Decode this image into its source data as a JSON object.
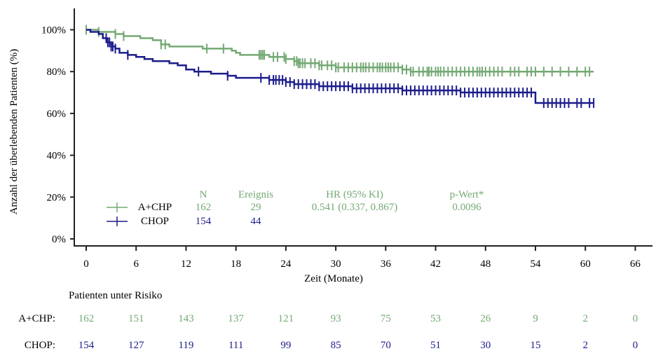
{
  "chart_data": {
    "type": "line",
    "subtype": "kaplan-meier",
    "title": "",
    "xlabel": "Zeit (Monate)",
    "ylabel": "Anzahl der überlebenden Patienten (%)",
    "xlim": [
      0,
      66
    ],
    "ylim": [
      0,
      100
    ],
    "x_ticks": [
      0,
      6,
      12,
      18,
      24,
      30,
      36,
      42,
      48,
      54,
      60,
      66
    ],
    "x_tick_labels": [
      "0",
      "6",
      "12",
      "18",
      "24",
      "30",
      "36",
      "42",
      "48",
      "54",
      "60",
      "66"
    ],
    "y_ticks": [
      0,
      20,
      40,
      60,
      80,
      100
    ],
    "y_tick_labels": [
      "0%",
      "20%",
      "40%",
      "60%",
      "80%",
      "100%"
    ],
    "grid": false,
    "legend_placement": "bottom-left",
    "colors": {
      "a_chp": "#74a974",
      "chop": "#1c1c8c",
      "axis": "#222222"
    },
    "series": [
      {
        "name": "A+CHP",
        "color": "#74a974",
        "steps": [
          [
            0,
            100
          ],
          [
            1.5,
            99
          ],
          [
            3.5,
            98
          ],
          [
            4.5,
            97
          ],
          [
            6.5,
            96
          ],
          [
            8,
            95
          ],
          [
            9,
            93
          ],
          [
            10,
            92
          ],
          [
            12,
            92
          ],
          [
            14,
            91
          ],
          [
            17,
            91
          ],
          [
            17.5,
            90
          ],
          [
            18,
            89
          ],
          [
            18.5,
            88
          ],
          [
            20,
            88
          ],
          [
            22,
            87
          ],
          [
            24,
            86
          ],
          [
            25,
            85
          ],
          [
            25.5,
            84
          ],
          [
            26,
            84
          ],
          [
            28,
            83
          ],
          [
            29,
            83
          ],
          [
            30,
            82
          ],
          [
            31,
            82
          ],
          [
            33,
            82
          ],
          [
            38,
            81
          ],
          [
            39,
            80
          ],
          [
            61,
            80
          ]
        ],
        "censored": [
          0,
          1.5,
          3.5,
          4.5,
          9,
          9.5,
          14.5,
          16.5,
          20.8,
          21,
          21.2,
          21.4,
          22.5,
          23,
          23.8,
          24,
          25,
          25.3,
          25.5,
          25.7,
          26,
          26.3,
          27,
          27.5,
          28,
          28.3,
          29,
          29.5,
          30,
          30.3,
          31,
          31.5,
          32,
          32.5,
          33,
          33.3,
          33.6,
          34,
          34.5,
          35,
          35.3,
          35.6,
          36,
          36.3,
          36.6,
          37,
          37.5,
          38,
          38.5,
          39,
          39.3,
          40,
          40.5,
          41,
          41.2,
          41.5,
          42,
          42.3,
          42.6,
          43,
          43.5,
          44,
          44.5,
          45,
          45.5,
          46,
          46.5,
          47,
          47.3,
          47.6,
          48,
          48.5,
          49,
          49.5,
          50,
          51,
          51.5,
          52,
          53,
          53.5,
          54,
          55,
          56,
          57,
          58,
          59,
          60,
          60.5
        ]
      },
      {
        "name": "CHOP",
        "color": "#1c1c8c",
        "steps": [
          [
            0,
            100
          ],
          [
            0.5,
            99
          ],
          [
            1.5,
            98
          ],
          [
            2,
            96
          ],
          [
            2.5,
            94
          ],
          [
            3,
            92
          ],
          [
            3.5,
            91
          ],
          [
            4,
            89
          ],
          [
            5,
            88
          ],
          [
            6,
            87
          ],
          [
            7,
            86
          ],
          [
            8,
            85
          ],
          [
            9,
            85
          ],
          [
            10,
            84
          ],
          [
            11,
            83
          ],
          [
            12,
            81
          ],
          [
            13,
            80
          ],
          [
            15,
            79
          ],
          [
            17,
            78
          ],
          [
            18,
            77
          ],
          [
            20,
            77
          ],
          [
            22,
            76
          ],
          [
            24,
            75
          ],
          [
            25,
            74
          ],
          [
            27,
            74
          ],
          [
            28,
            73
          ],
          [
            30,
            73
          ],
          [
            32,
            72
          ],
          [
            35,
            72
          ],
          [
            38,
            71
          ],
          [
            44,
            71
          ],
          [
            45,
            70
          ],
          [
            54,
            70
          ],
          [
            54,
            65
          ],
          [
            61,
            65
          ]
        ],
        "censored": [
          2.4,
          2.6,
          2.8,
          3,
          3.2,
          3.5,
          5,
          13.5,
          17,
          21,
          22,
          22.5,
          22.8,
          23.2,
          23.6,
          24,
          24.5,
          25,
          25.5,
          26,
          26.5,
          27,
          27.5,
          28,
          28.5,
          29,
          29.5,
          30,
          30.5,
          31,
          31.5,
          32,
          32.5,
          33,
          33.5,
          34,
          34.5,
          35,
          35.5,
          36,
          36.5,
          37,
          37.5,
          38,
          38.5,
          39,
          39.5,
          40,
          40.5,
          41,
          41.5,
          42,
          42.5,
          43,
          43.5,
          44,
          44.5,
          45,
          45.5,
          46,
          46.5,
          47,
          47.5,
          48,
          48.5,
          49,
          49.5,
          50,
          50.5,
          51,
          51.5,
          52,
          52.5,
          53,
          53.5,
          55,
          55.5,
          56,
          56.5,
          57,
          57.5,
          58,
          59,
          59.5,
          60.5,
          61
        ]
      }
    ],
    "legend": {
      "headers": {
        "n": "N",
        "events": "Ereignis",
        "hr": "HR (95% KI)",
        "p": "p-Wert*"
      },
      "rows": [
        {
          "name": "A+CHP",
          "n": "162",
          "events": "29",
          "hr": "0.541 (0.337, 0.867)",
          "p": "0.0096"
        },
        {
          "name": "CHOP",
          "n": "154",
          "events": "44",
          "hr": "",
          "p": ""
        }
      ]
    },
    "risk_table": {
      "title": "Patienten unter Risiko",
      "times": [
        0,
        6,
        12,
        18,
        24,
        30,
        36,
        42,
        48,
        54,
        60,
        66
      ],
      "rows": [
        {
          "label": "A+CHP:",
          "values": [
            "162",
            "151",
            "143",
            "137",
            "121",
            "93",
            "75",
            "53",
            "26",
            "9",
            "2",
            "0"
          ]
        },
        {
          "label": "CHOP:",
          "values": [
            "154",
            "127",
            "119",
            "111",
            "99",
            "85",
            "70",
            "51",
            "30",
            "15",
            "2",
            "0"
          ]
        }
      ]
    }
  }
}
